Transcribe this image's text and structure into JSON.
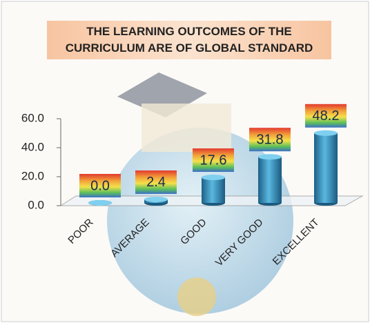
{
  "chart_data": {
    "type": "bar",
    "title": "THE LEARNING OUTCOMES OF THE CURRICULUM ARE OF GLOBAL STANDARD",
    "categories": [
      "POOR",
      "AVERAGE",
      "GOOD",
      "VERY GOOD",
      "EXCELLENT"
    ],
    "values": [
      0,
      2.4,
      17.6,
      31.8,
      48.2
    ],
    "value_labels": [
      "0.0",
      "2.4",
      "17.6",
      "31.8",
      "48.2"
    ],
    "color": "#2f8fbf",
    "ylim": [
      0,
      60
    ],
    "yticks": [
      {
        "value": 0,
        "label": "0.0"
      },
      {
        "value": 20,
        "label": "20.0"
      },
      {
        "value": 40,
        "label": "40.0"
      },
      {
        "value": 60,
        "label": "60.0"
      }
    ]
  }
}
